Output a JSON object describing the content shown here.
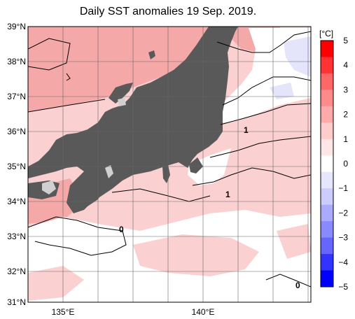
{
  "title": "Daily SST anomalies 19 Sep. 2019.",
  "axes": {
    "lat_labels": [
      "39°N",
      "38°N",
      "37°N",
      "36°N",
      "35°N",
      "34°N",
      "33°N",
      "32°N",
      "31°N"
    ],
    "lon_labels": [
      "135°E",
      "140°E"
    ]
  },
  "colorbar": {
    "unit": "[°C]",
    "ticks": [
      "5",
      "4",
      "3",
      "2",
      "1",
      "0",
      "−1",
      "−2",
      "−3",
      "−4",
      "−5"
    ],
    "colors": [
      "#ff0000",
      "#ff3333",
      "#ff6666",
      "#ff8a8a",
      "#ffaaaa",
      "#ffcccc",
      "#ffe6e6",
      "#ffffff",
      "#e6e6ff",
      "#ccccff",
      "#aaaaff",
      "#8a8aff",
      "#6666ff",
      "#3333ff",
      "#0000ff"
    ]
  },
  "contour_labels": [
    "1",
    "1",
    "0",
    "0"
  ],
  "colors": {
    "land": "#595959",
    "lake": "#d0d0d0",
    "anomaly_2": "#f4a8a8",
    "anomaly_1": "#fbd0d0",
    "anomaly_0": "#ffffff",
    "anomaly_neg1": "#e4e4fb"
  }
}
